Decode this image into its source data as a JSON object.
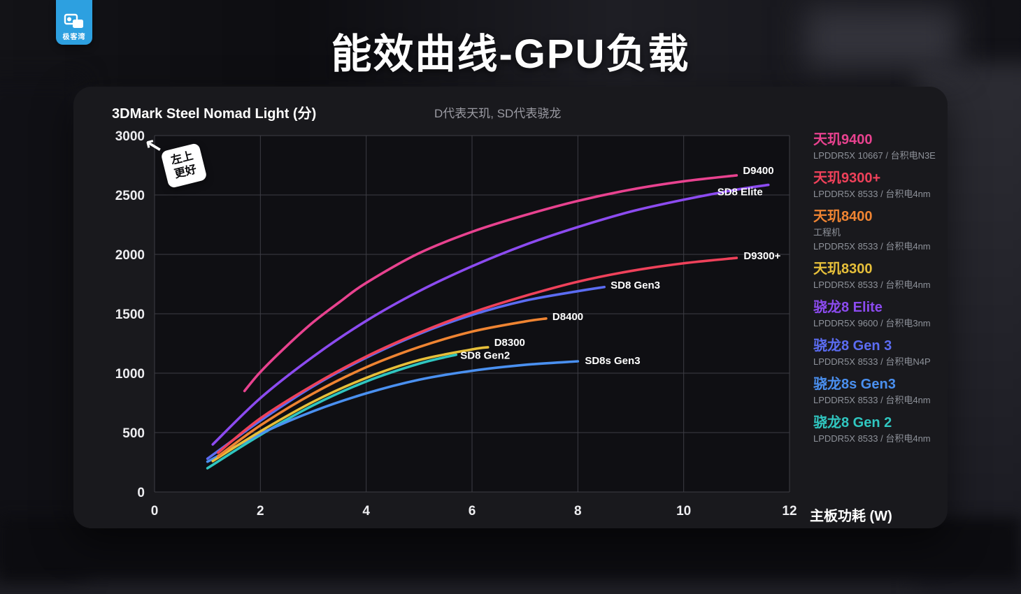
{
  "logo": {
    "text": "极客湾",
    "color": "#2da0e0"
  },
  "header": {
    "title": "能效曲线-GPU负载"
  },
  "annotation": {
    "line1": "左上",
    "line2": "更好",
    "arrow": "↖"
  },
  "legend": {
    "items": [
      {
        "name": "天玑9400",
        "color": "#e8428f",
        "subs": [
          "LPDDR5X 10667 / 台积电N3E"
        ]
      },
      {
        "name": "天玑9300+",
        "color": "#ef415a",
        "subs": [
          "LPDDR5X 8533 / 台积电4nm"
        ]
      },
      {
        "name": "天玑8400",
        "color": "#ef8432",
        "subs": [
          "工程机",
          "LPDDR5X 8533 / 台积电4nm"
        ]
      },
      {
        "name": "天玑8300",
        "color": "#e6bf3a",
        "subs": [
          "LPDDR5X 8533 / 台积电4nm"
        ]
      },
      {
        "name": "骁龙8 Elite",
        "color": "#8c4bf0",
        "subs": [
          "LPDDR5X 9600 / 台积电3nm"
        ]
      },
      {
        "name": "骁龙8 Gen 3",
        "color": "#5b6cf2",
        "subs": [
          "LPDDR5X 8533 / 台积电N4P"
        ]
      },
      {
        "name": "骁龙8s Gen3",
        "color": "#4a90f0",
        "subs": [
          "LPDDR5X 8533 / 台积电4nm"
        ]
      },
      {
        "name": "骁龙8 Gen 2",
        "color": "#30c6c0",
        "subs": [
          "LPDDR5X 8533 / 台积电4nm"
        ]
      }
    ]
  },
  "chart_data": {
    "type": "line",
    "title": "3DMark Steel Nomad Light (分)",
    "subtitle": "D代表天玑, SD代表骁龙",
    "xlabel": "主板功耗 (W)",
    "ylabel": "3DMark Steel Nomad Light (分)",
    "xlim": [
      0,
      12
    ],
    "ylim": [
      0,
      3000
    ],
    "xticks": [
      0,
      2,
      4,
      6,
      8,
      10,
      12
    ],
    "yticks": [
      0,
      500,
      1000,
      1500,
      2000,
      2500,
      3000
    ],
    "grid": true,
    "legend_position": "right",
    "series": [
      {
        "name": "骁龙8 Gen 2",
        "label": "SD8 Gen2",
        "color": "#30c6c0",
        "points": [
          [
            1,
            200
          ],
          [
            2,
            480
          ],
          [
            3,
            730
          ],
          [
            4,
            930
          ],
          [
            5,
            1080
          ],
          [
            5.7,
            1155
          ]
        ],
        "label_anchor": "start",
        "label_dx": 6,
        "label_dy": 6
      },
      {
        "name": "骁龙8s Gen3",
        "label": "SD8s Gen3",
        "color": "#4a90f0",
        "points": [
          [
            1,
            255
          ],
          [
            2,
            490
          ],
          [
            3,
            680
          ],
          [
            4,
            830
          ],
          [
            5,
            945
          ],
          [
            6,
            1020
          ],
          [
            7,
            1070
          ],
          [
            8,
            1100
          ]
        ],
        "label_anchor": "start",
        "label_dx": 10,
        "label_dy": 4
      },
      {
        "name": "天玑8300",
        "label": "D8300",
        "color": "#e6bf3a",
        "points": [
          [
            1.1,
            260
          ],
          [
            2,
            510
          ],
          [
            3,
            760
          ],
          [
            4,
            960
          ],
          [
            5,
            1110
          ],
          [
            6,
            1200
          ],
          [
            6.3,
            1218
          ]
        ],
        "label_anchor": "start",
        "label_dx": 9,
        "label_dy": -2
      },
      {
        "name": "天玑8400",
        "label": "D8400",
        "color": "#ef8432",
        "points": [
          [
            1.2,
            300
          ],
          [
            2,
            560
          ],
          [
            3,
            830
          ],
          [
            4,
            1050
          ],
          [
            5,
            1220
          ],
          [
            6,
            1350
          ],
          [
            7,
            1435
          ],
          [
            7.4,
            1460
          ]
        ],
        "label_anchor": "start",
        "label_dx": 9,
        "label_dy": 2
      },
      {
        "name": "骁龙8 Gen 3",
        "label": "SD8 Gen3",
        "color": "#5b6cf2",
        "points": [
          [
            1,
            280
          ],
          [
            2,
            600
          ],
          [
            3,
            890
          ],
          [
            4,
            1130
          ],
          [
            5,
            1330
          ],
          [
            6,
            1490
          ],
          [
            7,
            1610
          ],
          [
            8,
            1690
          ],
          [
            8.5,
            1725
          ]
        ],
        "label_anchor": "start",
        "label_dx": 9,
        "label_dy": 2
      },
      {
        "name": "天玑9300+",
        "label": "D9300+",
        "color": "#ef415a",
        "points": [
          [
            1.2,
            330
          ],
          [
            2,
            620
          ],
          [
            3,
            900
          ],
          [
            4,
            1140
          ],
          [
            5,
            1340
          ],
          [
            6,
            1510
          ],
          [
            7,
            1650
          ],
          [
            8,
            1770
          ],
          [
            9,
            1860
          ],
          [
            10,
            1925
          ],
          [
            11,
            1970
          ]
        ],
        "label_anchor": "start",
        "label_dx": 10,
        "label_dy": 2
      },
      {
        "name": "骁龙8 Elite",
        "label": "SD8 Elite",
        "color": "#8c4bf0",
        "points": [
          [
            1.1,
            400
          ],
          [
            2,
            790
          ],
          [
            3,
            1140
          ],
          [
            4,
            1440
          ],
          [
            5,
            1690
          ],
          [
            6,
            1900
          ],
          [
            7,
            2080
          ],
          [
            8,
            2230
          ],
          [
            9,
            2360
          ],
          [
            10,
            2460
          ],
          [
            11,
            2545
          ],
          [
            11.6,
            2585
          ]
        ],
        "label_anchor": "end",
        "label_dx": -8,
        "label_dy": 15
      },
      {
        "name": "天玑9400",
        "label": "D9400",
        "color": "#e8428f",
        "points": [
          [
            1.7,
            850
          ],
          [
            2,
            1010
          ],
          [
            2.5,
            1230
          ],
          [
            3,
            1430
          ],
          [
            3.5,
            1600
          ],
          [
            4,
            1760
          ],
          [
            5,
            2010
          ],
          [
            6,
            2190
          ],
          [
            7,
            2330
          ],
          [
            8,
            2450
          ],
          [
            9,
            2545
          ],
          [
            10,
            2615
          ],
          [
            11,
            2665
          ]
        ],
        "label_anchor": "start",
        "label_dx": 9,
        "label_dy": -2
      }
    ],
    "style": {
      "plot_background": "#0f0f13",
      "grid_color": "#3d3d44",
      "tick_color": "#ededf0",
      "series_label_color": "#ffffff"
    }
  }
}
